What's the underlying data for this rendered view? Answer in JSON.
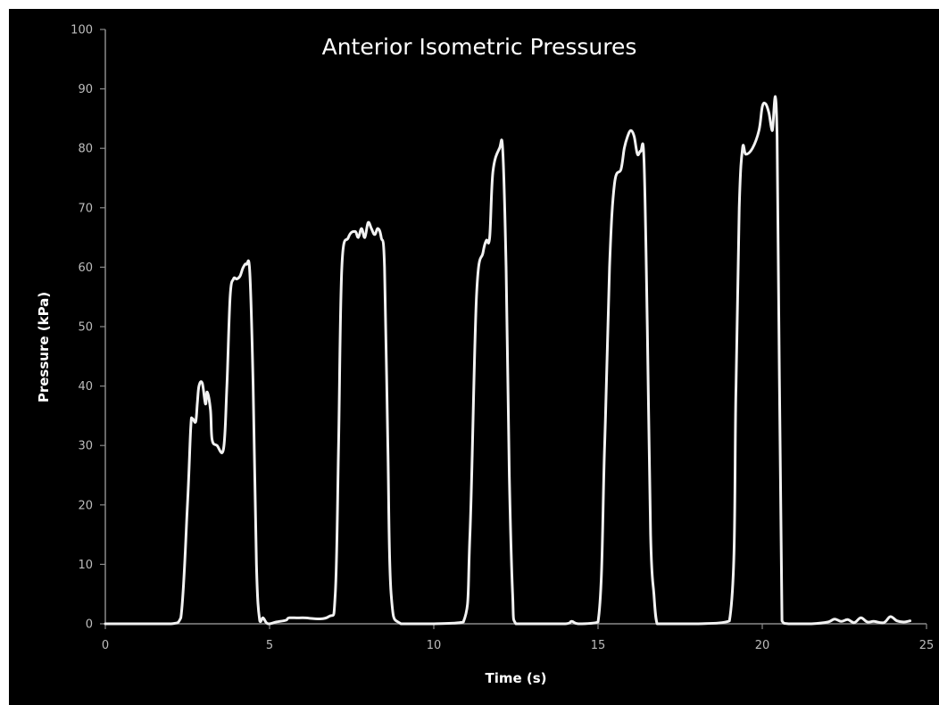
{
  "chart_data": {
    "type": "line",
    "title": "Anterior Isometric Pressures",
    "xlabel": "Time (s)",
    "ylabel": "Pressure (kPa)",
    "xlim": [
      0,
      25
    ],
    "ylim": [
      0,
      100
    ],
    "x_ticks": [
      "0",
      "5",
      "10",
      "15",
      "20",
      "25"
    ],
    "y_ticks": [
      "0",
      "10",
      "20",
      "30",
      "40",
      "50",
      "60",
      "70",
      "80",
      "90",
      "100"
    ],
    "grid": false,
    "legend": "none",
    "colors": {
      "background": "#000000",
      "line": "#f2f2f2",
      "axis": "#8a8a8a",
      "tick_text": "#bdbdbd"
    },
    "series": [
      {
        "x": [
          0,
          1,
          2,
          2.3,
          2.5,
          2.6,
          2.65,
          2.75,
          2.8,
          2.85,
          2.95,
          3.05,
          3.1,
          3.2,
          3.25,
          3.4,
          3.6,
          3.7,
          3.8,
          3.9,
          4.0,
          4.1,
          4.2,
          4.3,
          4.4,
          4.5,
          4.6,
          4.7,
          4.8,
          4.9,
          5.0,
          5.2,
          5.5,
          5.6,
          6.0,
          6.8,
          7.0,
          7.1,
          7.2,
          7.4,
          7.6,
          7.7,
          7.8,
          7.9,
          8.0,
          8.1,
          8.2,
          8.3,
          8.4,
          8.5,
          8.6,
          8.7,
          9,
          10,
          10.9,
          11.1,
          11.3,
          11.5,
          11.6,
          11.7,
          11.8,
          12.0,
          12.1,
          12.2,
          12.3,
          12.4,
          12.5,
          13,
          14,
          14.2,
          14.4,
          15.0,
          15.2,
          15.35,
          15.5,
          15.7,
          15.8,
          15.9,
          16.0,
          16.1,
          16.2,
          16.3,
          16.4,
          16.5,
          16.6,
          16.7,
          16.8,
          17,
          18,
          19.0,
          19.2,
          19.3,
          19.4,
          19.5,
          19.7,
          19.9,
          20.0,
          20.1,
          20.2,
          20.3,
          20.45,
          20.6,
          20.8,
          21.5,
          22.0,
          22.2,
          22.4,
          22.6,
          22.8,
          23.0,
          23.2,
          23.4,
          23.7,
          23.9,
          24.1,
          24.3,
          24.5
        ],
        "y": [
          0,
          0,
          0,
          1,
          20,
          33,
          34.5,
          34,
          37,
          40,
          40.5,
          37,
          39,
          36,
          31,
          30,
          29.5,
          40,
          55,
          58,
          58,
          58.5,
          60,
          60.5,
          59,
          40,
          10,
          0.5,
          1,
          0.2,
          0,
          0.3,
          0.6,
          1,
          1,
          1.2,
          5,
          30,
          60,
          65,
          66,
          65,
          66.5,
          65,
          67.5,
          66.5,
          65.5,
          66.5,
          65,
          60,
          30,
          5,
          0,
          0,
          0.3,
          15,
          55,
          62.5,
          64.5,
          65,
          76,
          80,
          79.5,
          60,
          25,
          5,
          0,
          0,
          0,
          0.4,
          0,
          0.3,
          30,
          60,
          74,
          76.5,
          80,
          82,
          83,
          82,
          79,
          79.5,
          78,
          50,
          15,
          5,
          0,
          0,
          0,
          0.5,
          40,
          70,
          80,
          79,
          80,
          83,
          87,
          87.5,
          86,
          83,
          82,
          0.5,
          0,
          0,
          0.3,
          0.8,
          0.4,
          0.7,
          0.2,
          1.0,
          0.3,
          0.4,
          0.2,
          1.2,
          0.5,
          0.3,
          0.5
        ]
      }
    ]
  }
}
